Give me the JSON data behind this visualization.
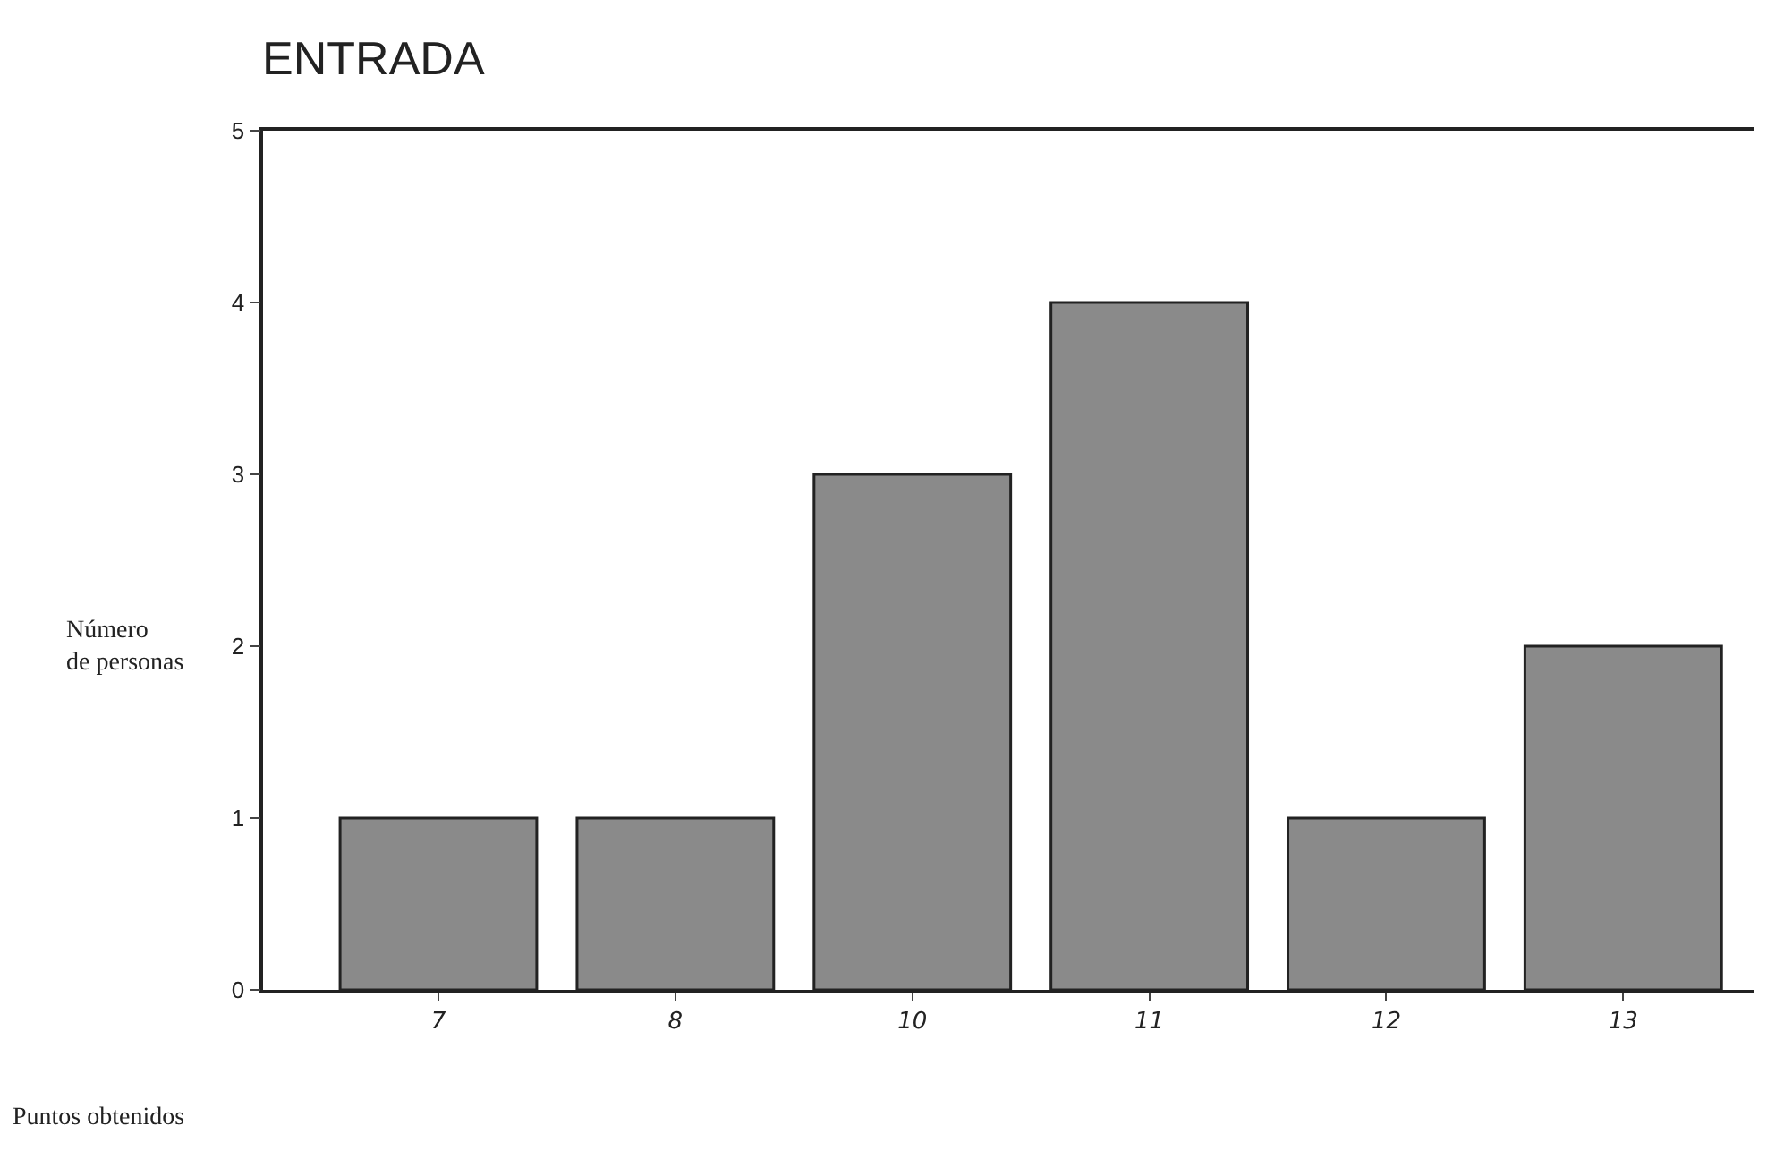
{
  "chart_data": {
    "type": "bar",
    "title": "ENTRADA",
    "xlabel": "Puntos obtenidos",
    "ylabel": "Número\nde personas",
    "categories": [
      "7",
      "8",
      "10",
      "11",
      "12",
      "13"
    ],
    "values": [
      1,
      1,
      3,
      4,
      1,
      2
    ],
    "color": "#8a8a8a",
    "ylim": [
      0,
      5
    ],
    "yticks": [
      0,
      1,
      2,
      3,
      4,
      5
    ],
    "grid": false
  }
}
